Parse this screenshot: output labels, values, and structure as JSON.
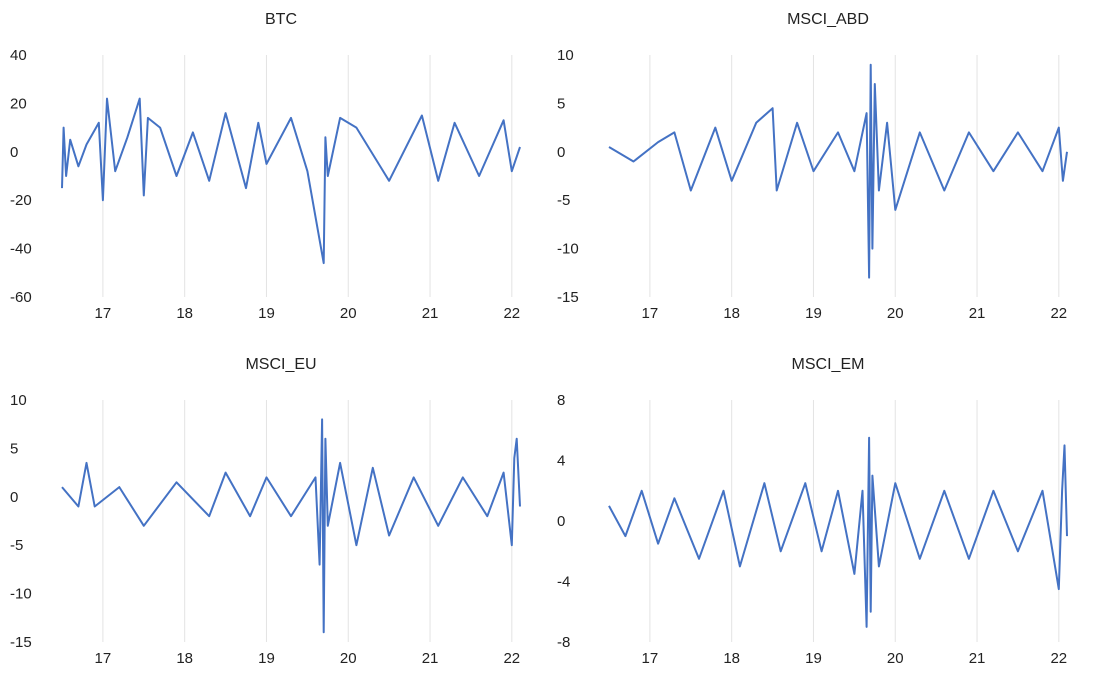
{
  "chart_data": [
    {
      "type": "line",
      "title": "BTC",
      "x_ticks": [
        "17",
        "18",
        "19",
        "20",
        "21",
        "22"
      ],
      "x_tick_years": [
        2017,
        2018,
        2019,
        2020,
        2021,
        2022
      ],
      "xlim": [
        2016.5,
        2022.1
      ],
      "ylim": [
        -60,
        40
      ],
      "y_ticks": [
        "40",
        "20",
        "0",
        "-20",
        "-40",
        "-60"
      ],
      "y_tick_values": [
        40,
        20,
        0,
        -20,
        -40,
        -60
      ],
      "grid": "vertical",
      "series": [
        {
          "color": "#4472c4",
          "x": [
            2016.5,
            2016.52,
            2016.55,
            2016.6,
            2016.7,
            2016.8,
            2016.95,
            2017.0,
            2017.05,
            2017.15,
            2017.3,
            2017.45,
            2017.5,
            2017.55,
            2017.7,
            2017.9,
            2018.1,
            2018.3,
            2018.5,
            2018.75,
            2018.9,
            2019.0,
            2019.3,
            2019.5,
            2019.7,
            2019.72,
            2019.75,
            2019.9,
            2020.1,
            2020.5,
            2020.9,
            2021.1,
            2021.3,
            2021.6,
            2021.9,
            2022.0,
            2022.1
          ],
          "y": [
            -15,
            10,
            -10,
            5,
            -6,
            3,
            12,
            -20,
            22,
            -8,
            6,
            22,
            -18,
            14,
            10,
            -10,
            8,
            -12,
            16,
            -15,
            12,
            -5,
            14,
            -8,
            -46,
            6,
            -10,
            14,
            10,
            -12,
            15,
            -12,
            12,
            -10,
            13,
            -8,
            2
          ]
        }
      ]
    },
    {
      "type": "line",
      "title": "MSCI_ABD",
      "x_ticks": [
        "17",
        "18",
        "19",
        "20",
        "21",
        "22"
      ],
      "x_tick_years": [
        2017,
        2018,
        2019,
        2020,
        2021,
        2022
      ],
      "xlim": [
        2016.5,
        2022.1
      ],
      "ylim": [
        -15,
        10
      ],
      "y_ticks": [
        "10",
        "5",
        "0",
        "-5",
        "-10",
        "-15"
      ],
      "y_tick_values": [
        10,
        5,
        0,
        -5,
        -10,
        -15
      ],
      "grid": "vertical",
      "series": [
        {
          "color": "#4472c4",
          "x": [
            2016.5,
            2016.8,
            2017.1,
            2017.3,
            2017.5,
            2017.8,
            2018.0,
            2018.3,
            2018.5,
            2018.55,
            2018.8,
            2019.0,
            2019.3,
            2019.5,
            2019.65,
            2019.68,
            2019.7,
            2019.72,
            2019.75,
            2019.8,
            2019.9,
            2020.0,
            2020.3,
            2020.6,
            2020.9,
            2021.2,
            2021.5,
            2021.8,
            2022.0,
            2022.05,
            2022.1
          ],
          "y": [
            0.5,
            -1,
            1,
            2,
            -4,
            2.5,
            -3,
            3,
            4.5,
            -4,
            3,
            -2,
            2,
            -2,
            4,
            -13,
            9,
            -10,
            7,
            -4,
            3,
            -6,
            2,
            -4,
            2,
            -2,
            2,
            -2,
            2.5,
            -3,
            0
          ]
        }
      ]
    },
    {
      "type": "line",
      "title": "MSCI_EU",
      "x_ticks": [
        "17",
        "18",
        "19",
        "20",
        "21",
        "22"
      ],
      "x_tick_years": [
        2017,
        2018,
        2019,
        2020,
        2021,
        2022
      ],
      "xlim": [
        2016.5,
        2022.1
      ],
      "ylim": [
        -15,
        10
      ],
      "y_ticks": [
        "10",
        "5",
        "0",
        "-5",
        "-10",
        "-15"
      ],
      "y_tick_values": [
        10,
        5,
        0,
        -5,
        -10,
        -15
      ],
      "grid": "vertical",
      "series": [
        {
          "color": "#4472c4",
          "x": [
            2016.5,
            2016.7,
            2016.8,
            2016.9,
            2017.2,
            2017.5,
            2017.9,
            2018.3,
            2018.5,
            2018.8,
            2019.0,
            2019.3,
            2019.6,
            2019.65,
            2019.68,
            2019.7,
            2019.72,
            2019.75,
            2019.9,
            2020.1,
            2020.3,
            2020.5,
            2020.8,
            2021.1,
            2021.4,
            2021.7,
            2021.9,
            2022.0,
            2022.03,
            2022.06,
            2022.1
          ],
          "y": [
            1,
            -1,
            3.5,
            -1,
            1,
            -3,
            1.5,
            -2,
            2.5,
            -2,
            2,
            -2,
            2,
            -7,
            8,
            -14,
            6,
            -3,
            3.5,
            -5,
            3,
            -4,
            2,
            -3,
            2,
            -2,
            2.5,
            -5,
            4,
            6,
            -1
          ]
        }
      ]
    },
    {
      "type": "line",
      "title": "MSCI_EM",
      "x_ticks": [
        "17",
        "18",
        "19",
        "20",
        "21",
        "22"
      ],
      "x_tick_years": [
        2017,
        2018,
        2019,
        2020,
        2021,
        2022
      ],
      "xlim": [
        2016.5,
        2022.1
      ],
      "ylim": [
        -8,
        8
      ],
      "y_ticks": [
        "8",
        "4",
        "0",
        "-4",
        "-8"
      ],
      "y_tick_values": [
        8,
        4,
        0,
        -4,
        -8
      ],
      "grid": "vertical",
      "series": [
        {
          "color": "#4472c4",
          "x": [
            2016.5,
            2016.7,
            2016.9,
            2017.1,
            2017.3,
            2017.6,
            2017.9,
            2018.1,
            2018.4,
            2018.6,
            2018.9,
            2019.1,
            2019.3,
            2019.5,
            2019.6,
            2019.65,
            2019.68,
            2019.7,
            2019.72,
            2019.8,
            2020.0,
            2020.3,
            2020.6,
            2020.9,
            2021.2,
            2021.5,
            2021.8,
            2022.0,
            2022.04,
            2022.07,
            2022.1
          ],
          "y": [
            1,
            -1,
            2,
            -1.5,
            1.5,
            -2.5,
            2,
            -3,
            2.5,
            -2,
            2.5,
            -2,
            2,
            -3.5,
            2,
            -7,
            5.5,
            -6,
            3,
            -3,
            2.5,
            -2.5,
            2,
            -2.5,
            2,
            -2,
            2,
            -4.5,
            2,
            5,
            -1
          ]
        }
      ]
    }
  ]
}
